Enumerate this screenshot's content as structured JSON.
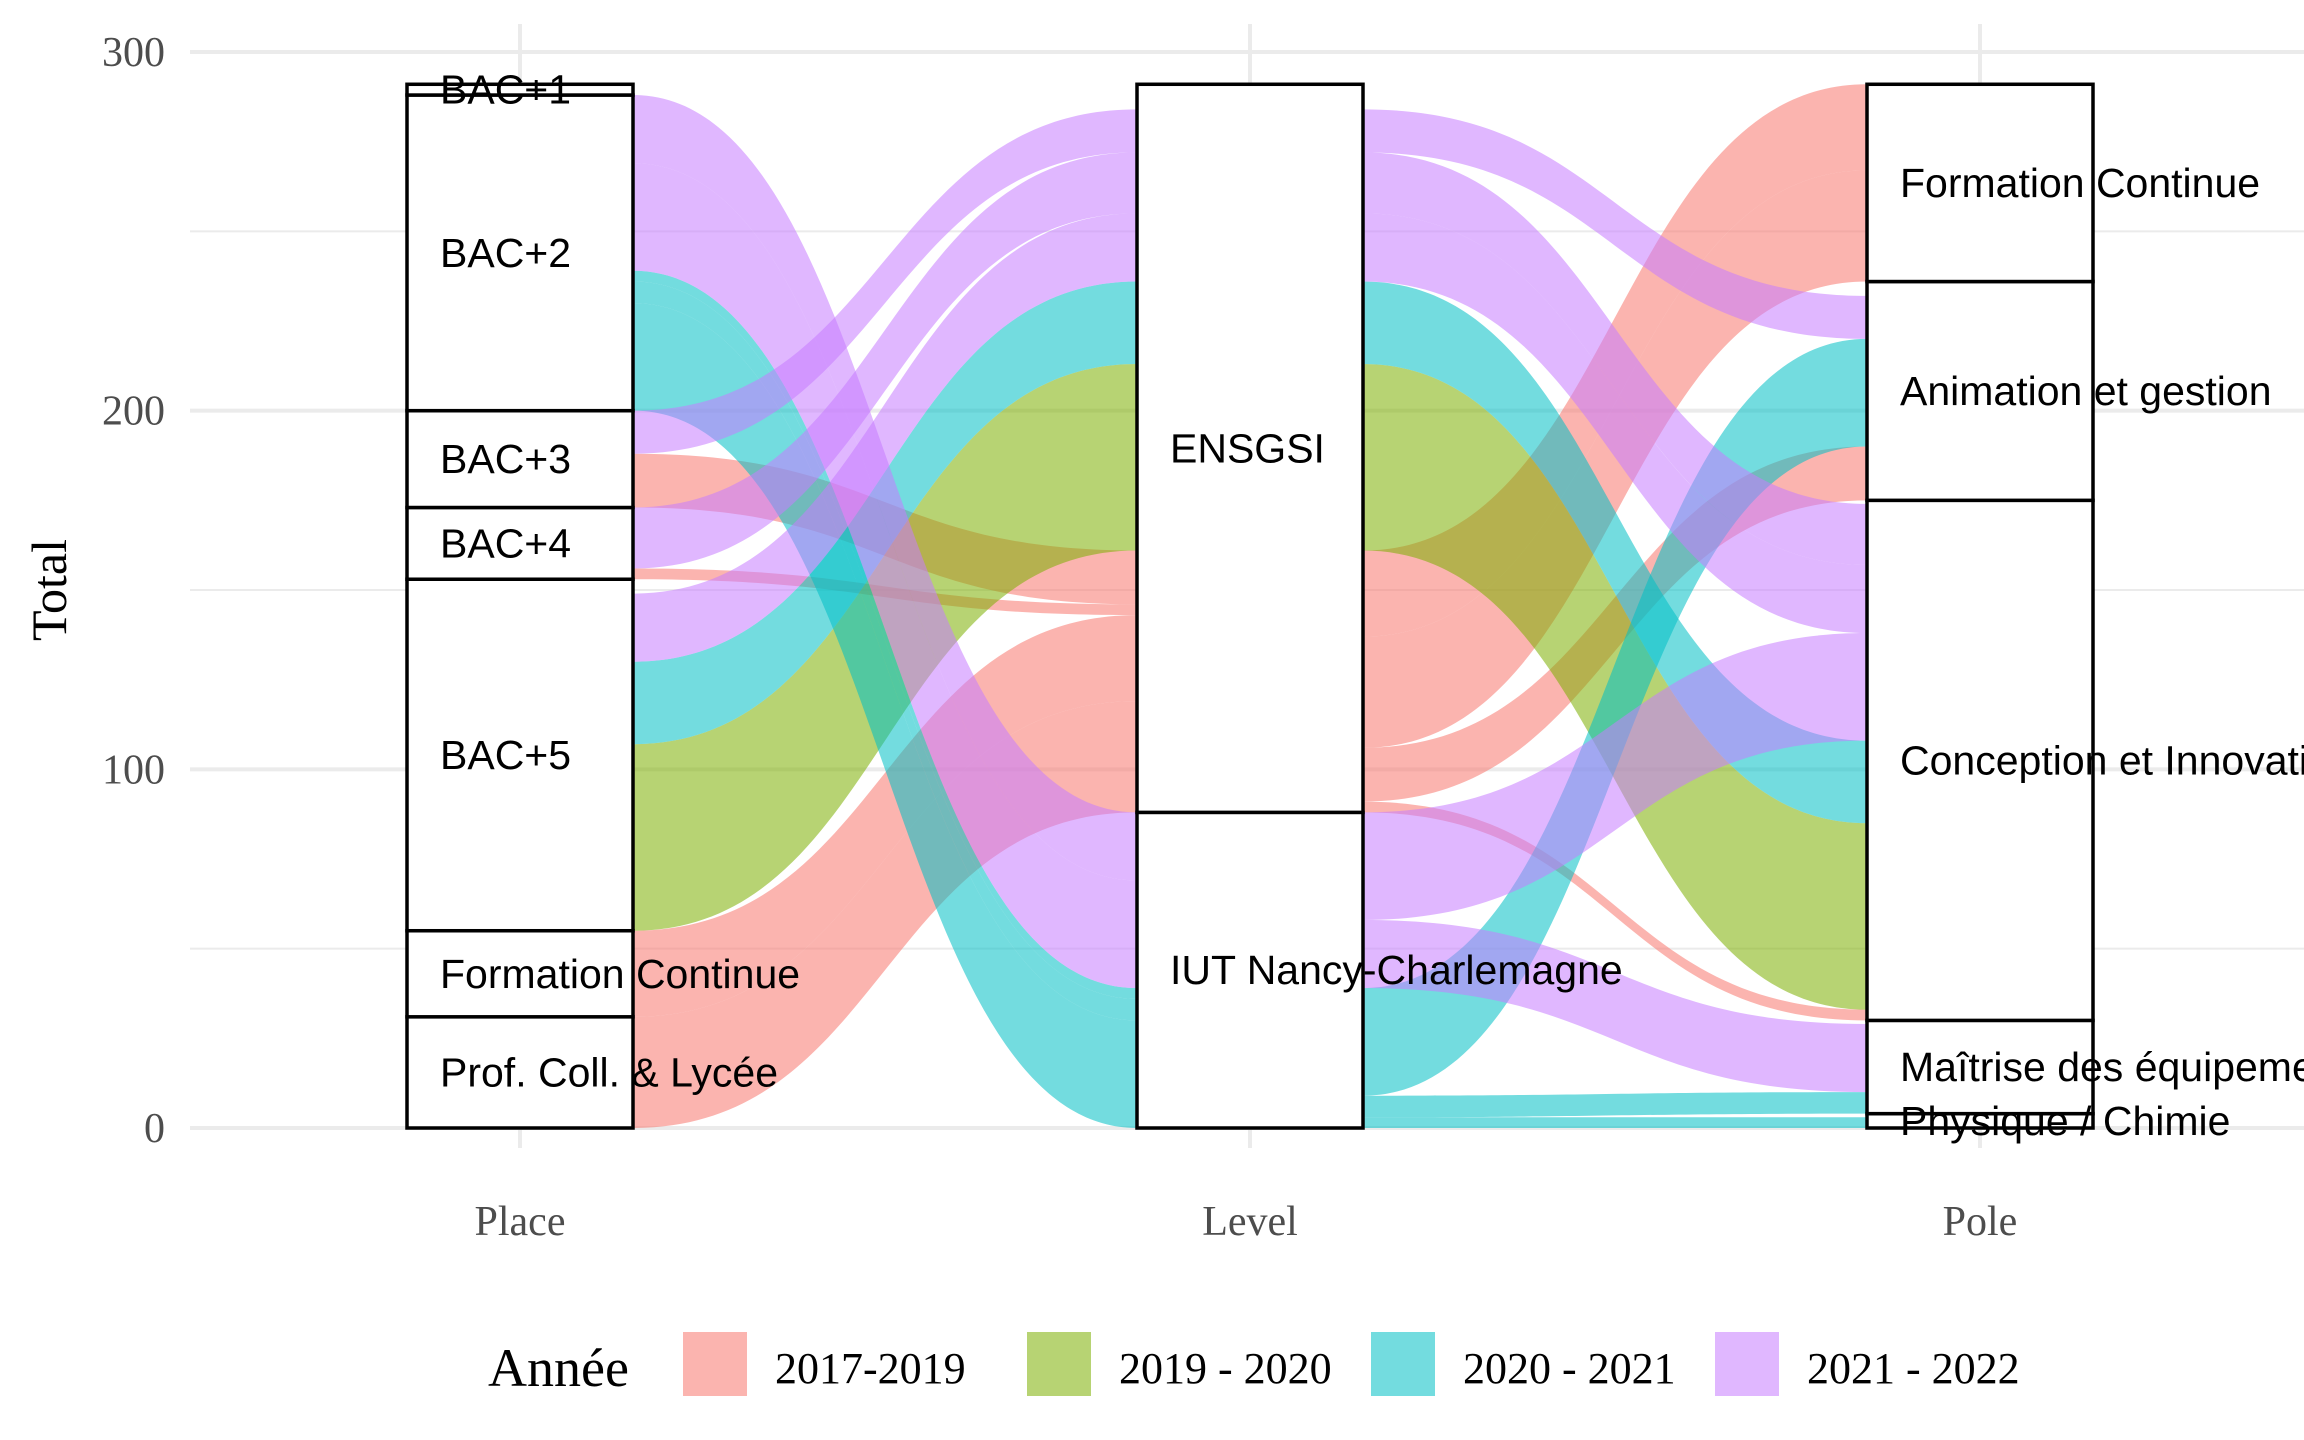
{
  "chart_data": {
    "type": "alluvial",
    "title": "",
    "xlabel": "",
    "ylabel": "Total",
    "ylim": [
      0,
      300
    ],
    "y_ticks": [
      "0",
      "100",
      "200",
      "300"
    ],
    "grid": true,
    "legend_position": "bottom",
    "axes": [
      "Place",
      "Level",
      "Pole"
    ],
    "legend": {
      "title": "Année",
      "items": [
        {
          "label": "2017-2019",
          "color": "#F8766D"
        },
        {
          "label": "2019 - 2020",
          "color": "#7CAE00"
        },
        {
          "label": "2020 - 2021",
          "color": "#00BFC4"
        },
        {
          "label": "2021 - 2022",
          "color": "#C77CFF"
        }
      ]
    },
    "strata": {
      "Place": [
        {
          "label": "Prof. Coll. & Lycée",
          "value": 31
        },
        {
          "label": "Formation Continue",
          "value": 24
        },
        {
          "label": "BAC+5",
          "value": 98
        },
        {
          "label": "BAC+4",
          "value": 20
        },
        {
          "label": "BAC+3",
          "value": 27
        },
        {
          "label": "BAC+2",
          "value": 88
        },
        {
          "label": "BAC+1",
          "value": 3
        }
      ],
      "Level": [
        {
          "label": "IUT Nancy-Charlemagne",
          "value": 88
        },
        {
          "label": "ENSGSI",
          "value": 203
        }
      ],
      "Pole": [
        {
          "label": "Physique / Chimie",
          "value": 4
        },
        {
          "label": "Maîtrise des équipements",
          "value": 26
        },
        {
          "label": "Conception et Innovation",
          "value": 145
        },
        {
          "label": "Animation et gestion",
          "value": 61
        },
        {
          "label": "Formation Continue",
          "value": 55
        }
      ]
    },
    "flows": [
      {
        "year": "2017-2019",
        "Place": "Prof. Coll. & Lycée",
        "Level": "ENSGSI",
        "Pole": "Formation Continue",
        "value": 31
      },
      {
        "year": "2017-2019",
        "Place": "Formation Continue",
        "Level": "ENSGSI",
        "Pole": "Formation Continue",
        "value": 24
      },
      {
        "year": "2017-2019",
        "Place": "BAC+3",
        "Level": "ENSGSI",
        "Pole": "Animation et gestion",
        "value": 15
      },
      {
        "year": "2017-2019",
        "Place": "BAC+4",
        "Level": "ENSGSI",
        "Pole": "Conception et Innovation",
        "value": 3
      },
      {
        "year": "2019 - 2020",
        "Place": "BAC+5",
        "Level": "ENSGSI",
        "Pole": "Conception et Innovation",
        "value": 52
      },
      {
        "year": "2020 - 2021",
        "Place": "BAC+5",
        "Level": "ENSGSI",
        "Pole": "Conception et Innovation",
        "value": 23
      },
      {
        "year": "2020 - 2021",
        "Place": "BAC+2",
        "Level": "IUT Nancy-Charlemagne",
        "Pole": "Animation et gestion",
        "value": 30
      },
      {
        "year": "2020 - 2021",
        "Place": "BAC+2",
        "Level": "IUT Nancy-Charlemagne",
        "Pole": "Maîtrise des équipements",
        "value": 6
      },
      {
        "year": "2020 - 2021",
        "Place": "BAC+2",
        "Level": "IUT Nancy-Charlemagne",
        "Pole": "Physique / Chimie",
        "value": 3
      },
      {
        "year": "2021 - 2022",
        "Place": "BAC+5",
        "Level": "ENSGSI",
        "Pole": "Conception et Innovation",
        "value": 19
      },
      {
        "year": "2021 - 2022",
        "Place": "BAC+4",
        "Level": "ENSGSI",
        "Pole": "Conception et Innovation",
        "value": 17
      },
      {
        "year": "2021 - 2022",
        "Place": "BAC+3",
        "Level": "ENSGSI",
        "Pole": "Animation et gestion",
        "value": 12
      },
      {
        "year": "2021 - 2022",
        "Place": "BAC+2",
        "Level": "IUT Nancy-Charlemagne",
        "Pole": "Conception et Innovation",
        "value": 30
      },
      {
        "year": "2021 - 2022",
        "Place": "BAC+2",
        "Level": "IUT Nancy-Charlemagne",
        "Pole": "Maîtrise des équipements",
        "value": 19
      }
    ]
  }
}
